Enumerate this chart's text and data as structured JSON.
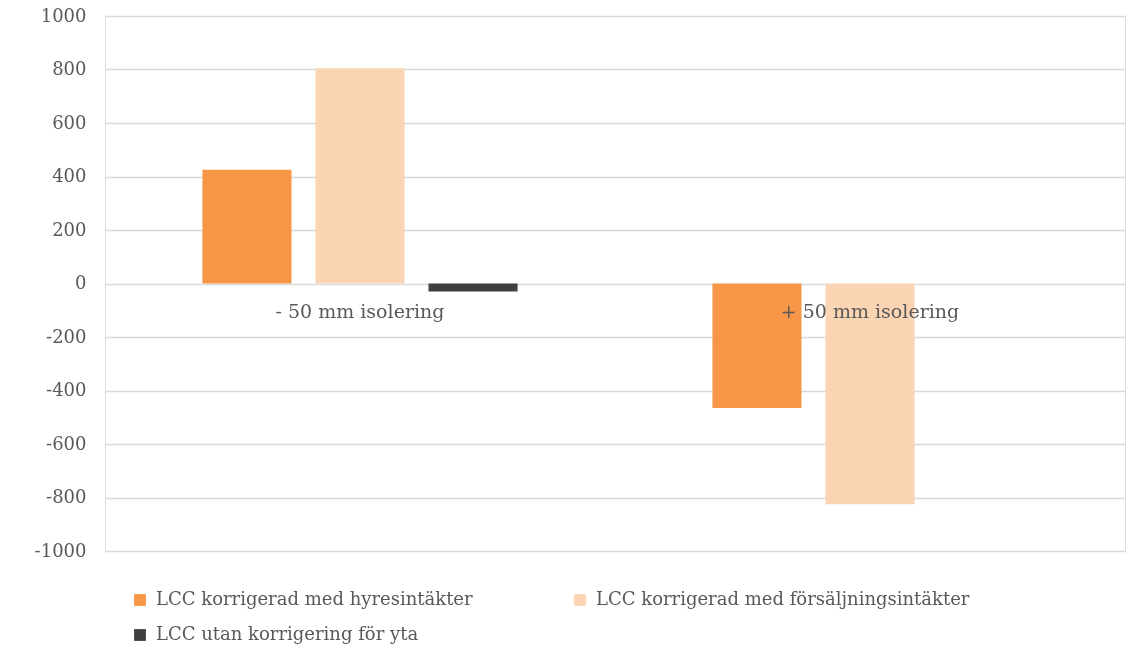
{
  "chart_data": {
    "type": "bar",
    "categories": [
      "- 50 mm isolering",
      "+ 50 mm isolering"
    ],
    "series": [
      {
        "name": "LCC korrigerad med hyresintäkter",
        "color": "#f79646",
        "values": [
          425,
          -465
        ]
      },
      {
        "name": "LCC korrigerad med försäljningsintäkter",
        "color": "#fbd4b4",
        "values": [
          805,
          -825
        ]
      },
      {
        "name": "LCC utan korrigering för yta",
        "color": "#404040",
        "values": [
          -30,
          null
        ]
      }
    ],
    "ylim": [
      -1000,
      1000
    ],
    "yticks": [
      -1000,
      -800,
      -600,
      -400,
      -200,
      0,
      200,
      400,
      600,
      800,
      1000
    ],
    "grid": "y",
    "legend": "bottom"
  }
}
